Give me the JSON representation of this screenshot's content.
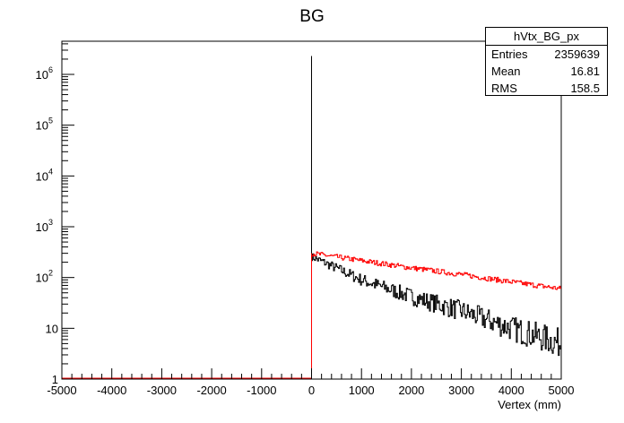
{
  "chart_data": {
    "type": "line",
    "title": "BG",
    "xlabel": "Vertex (mm)",
    "ylabel": "",
    "xlim": [
      -5000,
      5000
    ],
    "ylim": [
      1,
      4500000
    ],
    "yscale": "log",
    "x_ticks": [
      "-5000",
      "-4000",
      "-3000",
      "-2000",
      "-1000",
      "0",
      "1000",
      "2000",
      "3000",
      "4000",
      "5000"
    ],
    "y_ticks": [
      {
        "base": "10",
        "exp": "6",
        "value": 1000000
      },
      {
        "base": "10",
        "exp": "5",
        "value": 100000
      },
      {
        "base": "10",
        "exp": "4",
        "value": 10000
      },
      {
        "base": "10",
        "exp": "3",
        "value": 1000
      },
      {
        "base": "10",
        "exp": "2",
        "value": 100
      },
      {
        "base": "10",
        "exp": "",
        "value": 10
      },
      {
        "base": "1",
        "exp": "",
        "value": 1
      }
    ],
    "series": [
      {
        "color": "#000000",
        "spike": {
          "x": 0,
          "y": 2300000
        },
        "trend": {
          "x": [
            0,
            1000,
            2000,
            3000,
            4000,
            5000
          ],
          "y": [
            260,
            90,
            42,
            22,
            10,
            5
          ]
        }
      },
      {
        "color": "#ff0000",
        "trend": {
          "x": [
            0,
            1000,
            2000,
            3000,
            4000,
            5000
          ],
          "y": [
            300,
            215,
            155,
            115,
            82,
            60
          ]
        }
      }
    ],
    "stats_box": {
      "name": "hVtx_BG_px",
      "rows": [
        {
          "label": "Entries",
          "value": "2359639"
        },
        {
          "label": "Mean",
          "value": "16.81"
        },
        {
          "label": "RMS",
          "value": "158.5"
        }
      ]
    }
  }
}
